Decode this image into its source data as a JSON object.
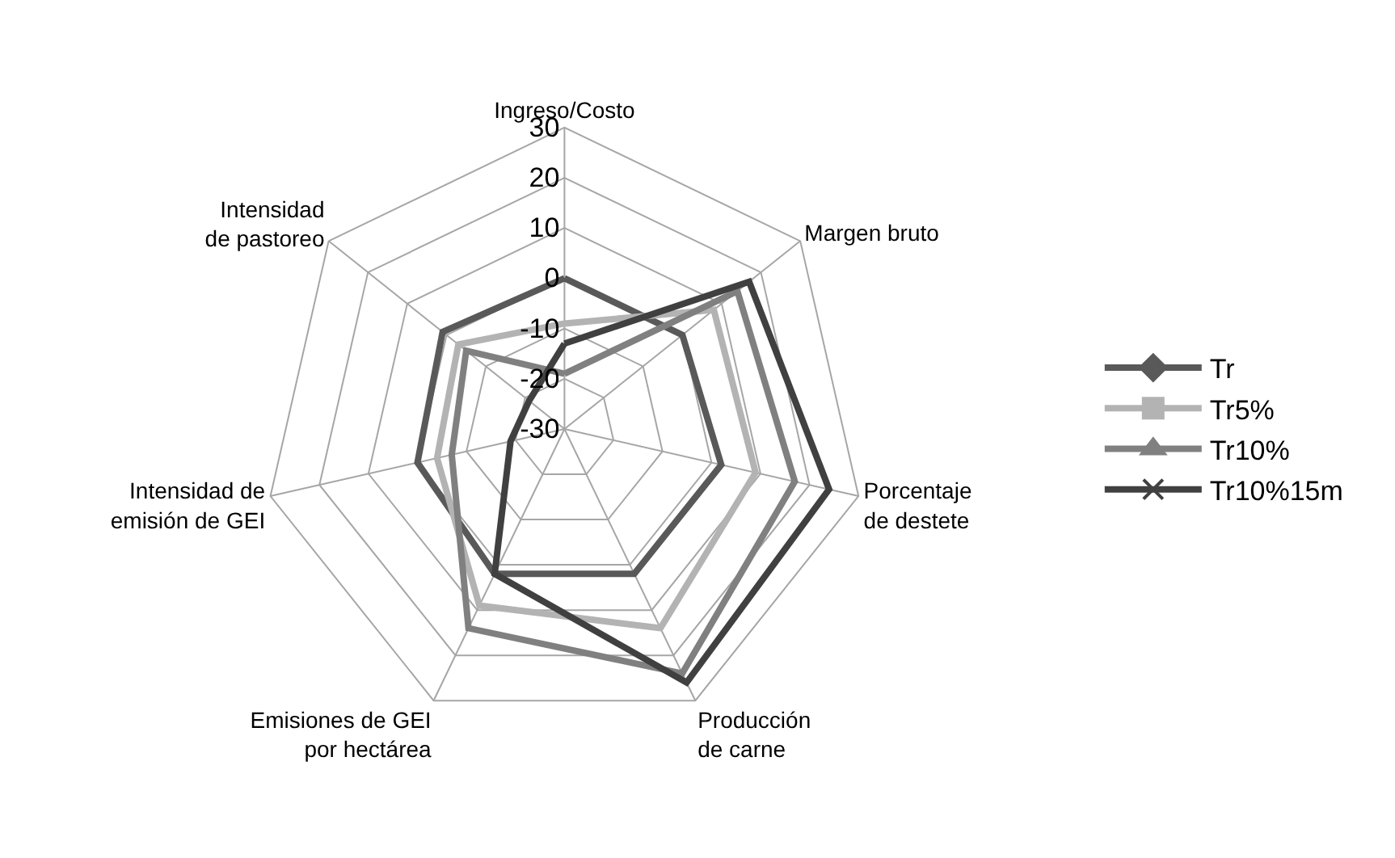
{
  "chart_data": {
    "type": "radar",
    "categories": [
      "Ingreso/Costo",
      "Margen bruto",
      "Porcentaje de destete",
      "Producción de carne",
      "Emisiones de GEI por hectárea",
      "Intensidad de emisión de GEI",
      "Intensidad de pastoreo"
    ],
    "series": [
      {
        "name": "Tr",
        "color": "#595959",
        "marker": "diamond",
        "values": [
          0,
          0,
          2,
          2,
          2,
          0,
          1
        ]
      },
      {
        "name": "Tr5%",
        "color": "#b3b3b3",
        "marker": "square",
        "values": [
          -9,
          8,
          9,
          14,
          9,
          -4,
          -3
        ]
      },
      {
        "name": "Tr10%",
        "color": "#808080",
        "marker": "triangle",
        "values": [
          -19,
          14,
          17,
          24,
          14,
          -7,
          -5
        ]
      },
      {
        "name": "Tr10%15m",
        "color": "#404040",
        "marker": "cross",
        "values": [
          -13,
          17,
          24,
          26,
          2,
          -19,
          -21
        ]
      }
    ],
    "ylim": [
      -30,
      30
    ],
    "yticks": [
      -30,
      -20,
      -10,
      0,
      10,
      20,
      30
    ],
    "grid": true,
    "legend": "right"
  }
}
